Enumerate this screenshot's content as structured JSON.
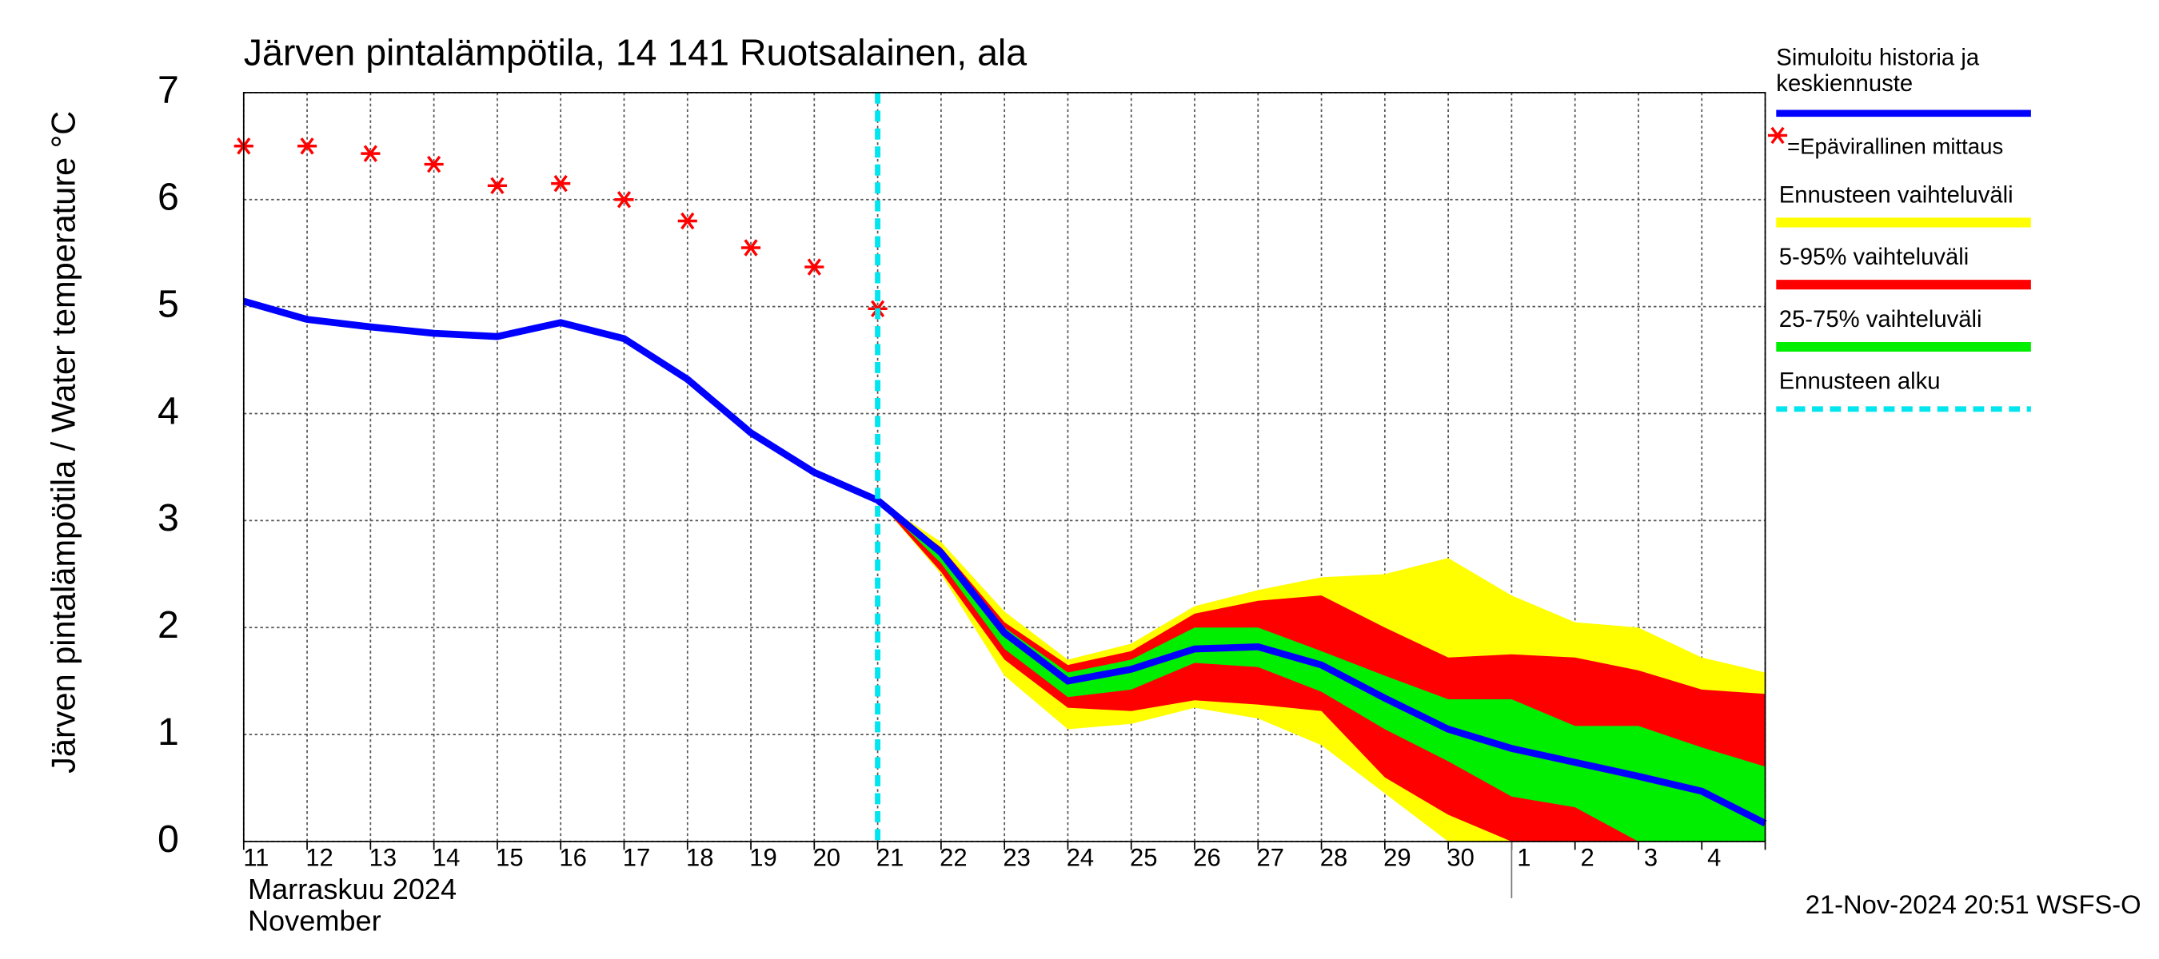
{
  "chart_data": {
    "type": "forecast-band",
    "title": "Järven pintalämpötila, 14 141 Ruotsalainen, ala",
    "y_label": "Järven pintalämpötila / Water temperature °C",
    "x_month_label": "Marraskuu 2024",
    "x_month_label_en": "November",
    "footer": "21-Nov-2024 20:51 WSFS-O",
    "categories": [
      "11",
      "12",
      "13",
      "14",
      "15",
      "16",
      "17",
      "18",
      "19",
      "20",
      "21",
      "22",
      "23",
      "24",
      "25",
      "26",
      "27",
      "28",
      "29",
      "30",
      "1",
      "2",
      "3",
      "4",
      null
    ],
    "xlim": [
      0,
      24
    ],
    "ylim": [
      0,
      7
    ],
    "yticks": [
      0,
      1,
      2,
      3,
      4,
      5,
      6,
      7
    ],
    "grid": true,
    "series": [
      {
        "name": "Simuloitu historia ja keskiennuste",
        "color": "#0000ff",
        "kind": "line",
        "values": [
          5.05,
          4.88,
          4.81,
          4.75,
          4.72,
          4.85,
          4.7,
          4.32,
          3.82,
          3.45,
          3.19,
          2.7,
          1.95,
          1.5,
          1.61,
          1.8,
          1.82,
          1.65,
          1.34,
          1.05,
          0.87,
          0.74,
          0.61,
          0.47,
          0.17
        ]
      },
      {
        "name": "=Epävirallinen mittaus",
        "color": "#ff0000",
        "kind": "marker",
        "values": [
          6.5,
          6.5,
          6.43,
          6.33,
          6.13,
          6.15,
          6.0,
          5.8,
          5.55,
          5.37,
          4.98,
          null,
          null,
          null,
          null,
          null,
          null,
          null,
          null,
          null,
          null,
          null,
          null,
          null,
          null
        ]
      },
      {
        "name": "Ennusteen vaihteluväli",
        "color": "#ffff00",
        "kind": "band",
        "upper": [
          null,
          null,
          null,
          null,
          null,
          null,
          null,
          null,
          null,
          null,
          3.19,
          2.8,
          2.15,
          1.7,
          1.85,
          2.2,
          2.35,
          2.47,
          2.5,
          2.65,
          2.3,
          2.05,
          2.0,
          1.72,
          1.58
        ],
        "lower": [
          null,
          null,
          null,
          null,
          null,
          null,
          null,
          null,
          null,
          null,
          3.19,
          2.5,
          1.55,
          1.05,
          1.1,
          1.25,
          1.15,
          0.9,
          0.45,
          0,
          0,
          0,
          0,
          0,
          0
        ]
      },
      {
        "name": "5-95% vaihteluväli",
        "color": "#ff0000",
        "kind": "band",
        "upper": [
          null,
          null,
          null,
          null,
          null,
          null,
          null,
          null,
          null,
          null,
          3.19,
          2.75,
          2.05,
          1.65,
          1.78,
          2.13,
          2.25,
          2.3,
          2.0,
          1.72,
          1.75,
          1.72,
          1.6,
          1.42,
          1.38
        ],
        "lower": [
          null,
          null,
          null,
          null,
          null,
          null,
          null,
          null,
          null,
          null,
          3.19,
          2.52,
          1.7,
          1.25,
          1.22,
          1.32,
          1.28,
          1.22,
          0.6,
          0.25,
          0,
          0,
          0,
          0,
          0
        ]
      },
      {
        "name": "25-75% vaihteluväli",
        "color": "#00ee00",
        "kind": "band",
        "upper": [
          null,
          null,
          null,
          null,
          null,
          null,
          null,
          null,
          null,
          null,
          3.19,
          2.72,
          2.0,
          1.58,
          1.7,
          2.0,
          2.0,
          1.78,
          1.55,
          1.33,
          1.33,
          1.08,
          1.08,
          0.88,
          0.7
        ],
        "lower": [
          null,
          null,
          null,
          null,
          null,
          null,
          null,
          null,
          null,
          null,
          3.19,
          2.6,
          1.8,
          1.35,
          1.42,
          1.67,
          1.63,
          1.4,
          1.05,
          0.75,
          0.42,
          0.32,
          0,
          0,
          0
        ]
      }
    ],
    "forecast_start": {
      "name": "Ennusteen alku",
      "color": "#00e5ee",
      "x": 10
    }
  }
}
